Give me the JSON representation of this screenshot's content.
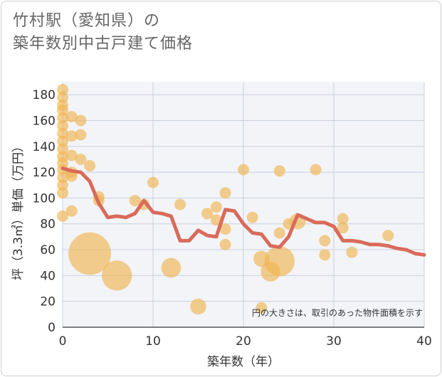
{
  "title_line1": "竹村駅（愛知県）の",
  "title_line2": "築年数別中古戸建て価格",
  "colors": {
    "bubble": "#f0b651",
    "line": "#d96b5a",
    "plot_bg": "#f2f4f8",
    "grid": "#c9d1dd"
  },
  "chart_data": {
    "type": "scatter",
    "title": "竹村駅（愛知県）の築年数別中古戸建て価格",
    "xlabel": "築年数（年）",
    "ylabel": "坪（3.3㎡）単価（万円）",
    "xlim": [
      0,
      40
    ],
    "ylim": [
      0,
      190
    ],
    "x_ticks": [
      0,
      10,
      20,
      30,
      40
    ],
    "y_ticks": [
      0,
      20,
      40,
      60,
      80,
      100,
      120,
      140,
      160,
      180
    ],
    "annotation": "円の大きさは、取引のあった物件面積を示す",
    "bubbles": [
      {
        "x": 0,
        "y": 184,
        "size": 1
      },
      {
        "x": 0,
        "y": 178,
        "size": 1
      },
      {
        "x": 0,
        "y": 172,
        "size": 1
      },
      {
        "x": 0,
        "y": 168,
        "size": 1
      },
      {
        "x": 0,
        "y": 162,
        "size": 1
      },
      {
        "x": 0,
        "y": 156,
        "size": 1
      },
      {
        "x": 0,
        "y": 150,
        "size": 1
      },
      {
        "x": 0,
        "y": 144,
        "size": 1
      },
      {
        "x": 0,
        "y": 138,
        "size": 1
      },
      {
        "x": 0,
        "y": 132,
        "size": 1
      },
      {
        "x": 0,
        "y": 127,
        "size": 1
      },
      {
        "x": 0,
        "y": 122,
        "size": 1
      },
      {
        "x": 0,
        "y": 116,
        "size": 1
      },
      {
        "x": 0,
        "y": 110,
        "size": 1
      },
      {
        "x": 0,
        "y": 104,
        "size": 1
      },
      {
        "x": 0,
        "y": 86,
        "size": 1
      },
      {
        "x": 1,
        "y": 163,
        "size": 1
      },
      {
        "x": 1,
        "y": 148,
        "size": 1
      },
      {
        "x": 1,
        "y": 133,
        "size": 1
      },
      {
        "x": 1,
        "y": 120,
        "size": 1
      },
      {
        "x": 1,
        "y": 117,
        "size": 1
      },
      {
        "x": 1,
        "y": 90,
        "size": 1
      },
      {
        "x": 2,
        "y": 160,
        "size": 1
      },
      {
        "x": 2,
        "y": 149,
        "size": 1
      },
      {
        "x": 2,
        "y": 130,
        "size": 1
      },
      {
        "x": 3,
        "y": 125,
        "size": 1
      },
      {
        "x": 3,
        "y": 57,
        "size": 14
      },
      {
        "x": 4,
        "y": 101,
        "size": 1
      },
      {
        "x": 4,
        "y": 98,
        "size": 1
      },
      {
        "x": 6,
        "y": 40,
        "size": 7
      },
      {
        "x": 8,
        "y": 98,
        "size": 1
      },
      {
        "x": 9,
        "y": 95,
        "size": 1
      },
      {
        "x": 10,
        "y": 112,
        "size": 1
      },
      {
        "x": 12,
        "y": 46,
        "size": 3
      },
      {
        "x": 13,
        "y": 95,
        "size": 1
      },
      {
        "x": 15,
        "y": 16,
        "size": 2
      },
      {
        "x": 16,
        "y": 88,
        "size": 1
      },
      {
        "x": 17,
        "y": 93,
        "size": 1
      },
      {
        "x": 17,
        "y": 83,
        "size": 1
      },
      {
        "x": 18,
        "y": 104,
        "size": 1
      },
      {
        "x": 18,
        "y": 76,
        "size": 1
      },
      {
        "x": 18,
        "y": 64,
        "size": 1
      },
      {
        "x": 20,
        "y": 122,
        "size": 1
      },
      {
        "x": 21,
        "y": 85,
        "size": 1
      },
      {
        "x": 22,
        "y": 53,
        "size": 2
      },
      {
        "x": 22,
        "y": 15,
        "size": 1
      },
      {
        "x": 23,
        "y": 43,
        "size": 3
      },
      {
        "x": 24,
        "y": 121,
        "size": 1
      },
      {
        "x": 24,
        "y": 73,
        "size": 1
      },
      {
        "x": 24,
        "y": 51,
        "size": 7
      },
      {
        "x": 25,
        "y": 80,
        "size": 1
      },
      {
        "x": 26,
        "y": 82,
        "size": 2
      },
      {
        "x": 28,
        "y": 122,
        "size": 1
      },
      {
        "x": 29,
        "y": 67,
        "size": 1
      },
      {
        "x": 29,
        "y": 56,
        "size": 1
      },
      {
        "x": 31,
        "y": 84,
        "size": 1
      },
      {
        "x": 31,
        "y": 77,
        "size": 1
      },
      {
        "x": 32,
        "y": 58,
        "size": 1
      },
      {
        "x": 36,
        "y": 71,
        "size": 1
      }
    ],
    "trend_line": {
      "x": [
        0,
        1,
        2,
        3,
        4,
        5,
        6,
        7,
        8,
        9,
        10,
        11,
        12,
        13,
        14,
        15,
        16,
        17,
        18,
        19,
        20,
        21,
        22,
        23,
        24,
        25,
        26,
        27,
        28,
        29,
        30,
        31,
        32,
        33,
        34,
        35,
        36,
        37,
        38,
        39,
        40
      ],
      "y": [
        123,
        121,
        120,
        113,
        96,
        85,
        86,
        85,
        88,
        98,
        89,
        88,
        86,
        67,
        67,
        75,
        71,
        70,
        91,
        90,
        80,
        73,
        72,
        63,
        62,
        70,
        87,
        84,
        81,
        81,
        78,
        67,
        67,
        66,
        64,
        64,
        63,
        61,
        60,
        57,
        56
      ]
    }
  }
}
